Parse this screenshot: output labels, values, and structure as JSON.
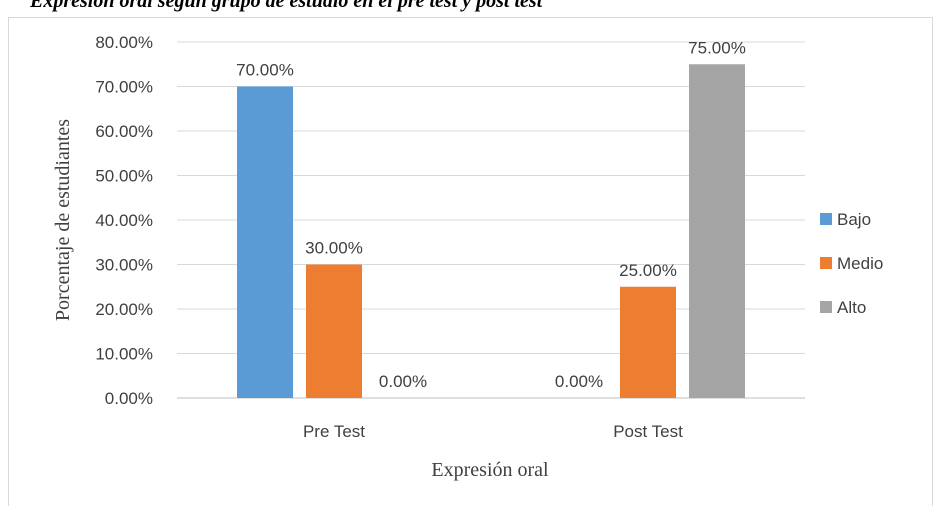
{
  "caption": "Expresión oral según grupo de estudio en el pre test y post test",
  "chart_data": {
    "type": "bar",
    "categories": [
      "Pre Test",
      "Post Test"
    ],
    "series": [
      {
        "name": "Bajo",
        "color": "#5b9bd5",
        "values": [
          70,
          0
        ],
        "labels": [
          "70.00%",
          "0.00%"
        ]
      },
      {
        "name": "Medio",
        "color": "#ed7d31",
        "values": [
          30,
          25
        ],
        "labels": [
          "30.00%",
          "25.00%"
        ]
      },
      {
        "name": "Alto",
        "color": "#a5a5a5",
        "values": [
          0,
          75
        ],
        "labels": [
          "0.00%",
          "75.00%"
        ]
      }
    ],
    "xlabel": "Expresión oral",
    "ylabel": "Porcentaje de estudiantes",
    "ylim": [
      0,
      80
    ],
    "yticks": [
      {
        "value": 0,
        "label": "0.00%"
      },
      {
        "value": 10,
        "label": "10.00%"
      },
      {
        "value": 20,
        "label": "20.00%"
      },
      {
        "value": 30,
        "label": "30.00%"
      },
      {
        "value": 40,
        "label": "40.00%"
      },
      {
        "value": 50,
        "label": "50.00%"
      },
      {
        "value": 60,
        "label": "60.00%"
      },
      {
        "value": 70,
        "label": "70.00%"
      },
      {
        "value": 80,
        "label": "80.00%"
      }
    ],
    "grid": true,
    "legend": "right"
  }
}
